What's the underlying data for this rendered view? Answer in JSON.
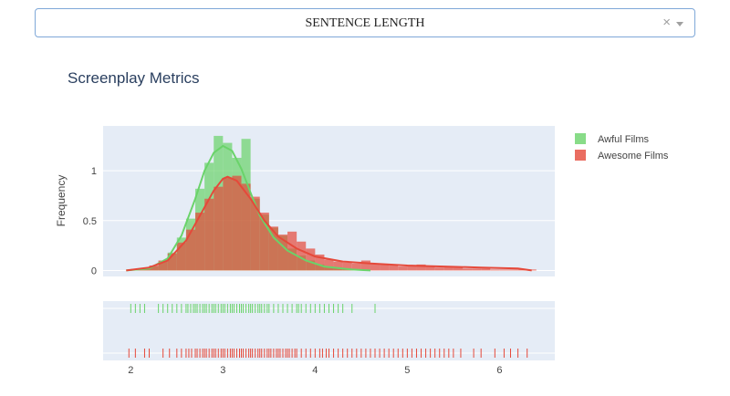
{
  "dropdown": {
    "value": "SENTENCE LENGTH",
    "clear_glyph": "×",
    "caret_icon": "caret-down-icon"
  },
  "chart_data": {
    "type": "histogram-distplot",
    "title": "Screenplay Metrics",
    "ylabel": "Frequency",
    "xlabel": "",
    "xlim": [
      1.7,
      6.6
    ],
    "ylim": [
      -0.06,
      1.45
    ],
    "x_ticks": [
      "2",
      "3",
      "4",
      "5",
      "6"
    ],
    "y_ticks": [
      "0",
      "0.5",
      "1"
    ],
    "legend_position": "top-right",
    "colors": {
      "awful": "#6ad36a",
      "awesome": "#e5493a",
      "plot_bg": "#e5ecf6"
    },
    "bin_width": 0.1,
    "series": [
      {
        "name": "Awful Films",
        "histogram": [
          {
            "x": 2.0,
            "y": 0.01
          },
          {
            "x": 2.1,
            "y": 0.02
          },
          {
            "x": 2.2,
            "y": 0.04
          },
          {
            "x": 2.3,
            "y": 0.09
          },
          {
            "x": 2.4,
            "y": 0.18
          },
          {
            "x": 2.5,
            "y": 0.33
          },
          {
            "x": 2.6,
            "y": 0.52
          },
          {
            "x": 2.7,
            "y": 0.82
          },
          {
            "x": 2.8,
            "y": 1.08
          },
          {
            "x": 2.9,
            "y": 1.35
          },
          {
            "x": 3.0,
            "y": 1.28
          },
          {
            "x": 3.1,
            "y": 1.13
          },
          {
            "x": 3.2,
            "y": 1.32
          },
          {
            "x": 3.3,
            "y": 0.72
          },
          {
            "x": 3.4,
            "y": 0.56
          },
          {
            "x": 3.5,
            "y": 0.43
          },
          {
            "x": 3.6,
            "y": 0.35
          },
          {
            "x": 3.7,
            "y": 0.22
          },
          {
            "x": 3.8,
            "y": 0.15
          },
          {
            "x": 3.9,
            "y": 0.1
          },
          {
            "x": 4.0,
            "y": 0.06
          },
          {
            "x": 4.1,
            "y": 0.04
          },
          {
            "x": 4.2,
            "y": 0.03
          },
          {
            "x": 4.3,
            "y": 0.02
          },
          {
            "x": 4.4,
            "y": 0.01
          },
          {
            "x": 4.5,
            "y": 0.01
          }
        ],
        "curve": [
          {
            "x": 1.95,
            "y": 0.0
          },
          {
            "x": 2.2,
            "y": 0.02
          },
          {
            "x": 2.4,
            "y": 0.12
          },
          {
            "x": 2.55,
            "y": 0.35
          },
          {
            "x": 2.7,
            "y": 0.72
          },
          {
            "x": 2.8,
            "y": 1.0
          },
          {
            "x": 2.9,
            "y": 1.18
          },
          {
            "x": 3.0,
            "y": 1.25
          },
          {
            "x": 3.1,
            "y": 1.2
          },
          {
            "x": 3.2,
            "y": 1.02
          },
          {
            "x": 3.3,
            "y": 0.78
          },
          {
            "x": 3.4,
            "y": 0.55
          },
          {
            "x": 3.55,
            "y": 0.33
          },
          {
            "x": 3.7,
            "y": 0.2
          },
          {
            "x": 3.9,
            "y": 0.1
          },
          {
            "x": 4.1,
            "y": 0.04
          },
          {
            "x": 4.4,
            "y": 0.01
          },
          {
            "x": 4.6,
            "y": 0.0
          }
        ],
        "rug": [
          2.0,
          2.05,
          2.1,
          2.15,
          2.3,
          2.35,
          2.4,
          2.45,
          2.5,
          2.55,
          2.6,
          2.62,
          2.65,
          2.68,
          2.7,
          2.72,
          2.75,
          2.78,
          2.8,
          2.82,
          2.85,
          2.88,
          2.9,
          2.92,
          2.95,
          2.98,
          3.0,
          3.02,
          3.05,
          3.08,
          3.1,
          3.12,
          3.15,
          3.18,
          3.2,
          3.22,
          3.25,
          3.28,
          3.3,
          3.32,
          3.35,
          3.38,
          3.4,
          3.42,
          3.45,
          3.48,
          3.5,
          3.55,
          3.6,
          3.65,
          3.7,
          3.75,
          3.8,
          3.82,
          3.85,
          3.9,
          3.95,
          4.0,
          4.05,
          4.1,
          4.15,
          4.2,
          4.25,
          4.3,
          4.4,
          4.65
        ]
      },
      {
        "name": "Awesome Films",
        "histogram": [
          {
            "x": 2.0,
            "y": 0.01
          },
          {
            "x": 2.1,
            "y": 0.02
          },
          {
            "x": 2.2,
            "y": 0.05
          },
          {
            "x": 2.3,
            "y": 0.1
          },
          {
            "x": 2.4,
            "y": 0.17
          },
          {
            "x": 2.5,
            "y": 0.28
          },
          {
            "x": 2.6,
            "y": 0.41
          },
          {
            "x": 2.7,
            "y": 0.58
          },
          {
            "x": 2.8,
            "y": 0.72
          },
          {
            "x": 2.9,
            "y": 0.84
          },
          {
            "x": 3.0,
            "y": 0.93
          },
          {
            "x": 3.1,
            "y": 0.95
          },
          {
            "x": 3.2,
            "y": 0.87
          },
          {
            "x": 3.3,
            "y": 0.74
          },
          {
            "x": 3.4,
            "y": 0.58
          },
          {
            "x": 3.5,
            "y": 0.44
          },
          {
            "x": 3.6,
            "y": 0.36
          },
          {
            "x": 3.7,
            "y": 0.39
          },
          {
            "x": 3.8,
            "y": 0.29
          },
          {
            "x": 3.9,
            "y": 0.22
          },
          {
            "x": 4.0,
            "y": 0.16
          },
          {
            "x": 4.1,
            "y": 0.11
          },
          {
            "x": 4.2,
            "y": 0.09
          },
          {
            "x": 4.3,
            "y": 0.08
          },
          {
            "x": 4.4,
            "y": 0.07
          },
          {
            "x": 4.5,
            "y": 0.1
          },
          {
            "x": 4.6,
            "y": 0.07
          },
          {
            "x": 4.7,
            "y": 0.06
          },
          {
            "x": 4.8,
            "y": 0.05
          },
          {
            "x": 4.9,
            "y": 0.04
          },
          {
            "x": 5.0,
            "y": 0.05
          },
          {
            "x": 5.1,
            "y": 0.06
          },
          {
            "x": 5.2,
            "y": 0.04
          },
          {
            "x": 5.3,
            "y": 0.03
          },
          {
            "x": 5.4,
            "y": 0.04
          },
          {
            "x": 5.5,
            "y": 0.03
          },
          {
            "x": 5.6,
            "y": 0.02
          },
          {
            "x": 5.7,
            "y": 0.02
          },
          {
            "x": 5.8,
            "y": 0.02
          },
          {
            "x": 5.9,
            "y": 0.01
          },
          {
            "x": 6.0,
            "y": 0.01
          },
          {
            "x": 6.1,
            "y": 0.01
          },
          {
            "x": 6.2,
            "y": 0.01
          },
          {
            "x": 6.3,
            "y": 0.01
          }
        ],
        "curve": [
          {
            "x": 1.95,
            "y": 0.0
          },
          {
            "x": 2.2,
            "y": 0.03
          },
          {
            "x": 2.4,
            "y": 0.1
          },
          {
            "x": 2.6,
            "y": 0.3
          },
          {
            "x": 2.75,
            "y": 0.55
          },
          {
            "x": 2.9,
            "y": 0.8
          },
          {
            "x": 3.0,
            "y": 0.92
          },
          {
            "x": 3.05,
            "y": 0.94
          },
          {
            "x": 3.15,
            "y": 0.9
          },
          {
            "x": 3.3,
            "y": 0.72
          },
          {
            "x": 3.45,
            "y": 0.5
          },
          {
            "x": 3.6,
            "y": 0.34
          },
          {
            "x": 3.8,
            "y": 0.22
          },
          {
            "x": 4.0,
            "y": 0.14
          },
          {
            "x": 4.3,
            "y": 0.09
          },
          {
            "x": 4.6,
            "y": 0.07
          },
          {
            "x": 5.0,
            "y": 0.05
          },
          {
            "x": 5.4,
            "y": 0.04
          },
          {
            "x": 5.8,
            "y": 0.03
          },
          {
            "x": 6.2,
            "y": 0.02
          },
          {
            "x": 6.35,
            "y": 0.0
          }
        ],
        "rug": [
          1.98,
          2.05,
          2.15,
          2.2,
          2.35,
          2.42,
          2.5,
          2.55,
          2.6,
          2.63,
          2.66,
          2.7,
          2.72,
          2.75,
          2.78,
          2.8,
          2.82,
          2.85,
          2.88,
          2.9,
          2.92,
          2.95,
          2.98,
          3.0,
          3.02,
          3.05,
          3.08,
          3.1,
          3.12,
          3.15,
          3.18,
          3.2,
          3.22,
          3.25,
          3.28,
          3.3,
          3.32,
          3.35,
          3.38,
          3.4,
          3.42,
          3.45,
          3.48,
          3.5,
          3.52,
          3.55,
          3.58,
          3.6,
          3.62,
          3.65,
          3.68,
          3.7,
          3.72,
          3.75,
          3.78,
          3.8,
          3.85,
          3.9,
          3.95,
          4.0,
          4.05,
          4.08,
          4.12,
          4.15,
          4.2,
          4.25,
          4.3,
          4.35,
          4.4,
          4.45,
          4.5,
          4.55,
          4.6,
          4.65,
          4.7,
          4.75,
          4.8,
          4.85,
          4.9,
          4.95,
          5.0,
          5.05,
          5.1,
          5.15,
          5.2,
          5.25,
          5.3,
          5.35,
          5.4,
          5.45,
          5.5,
          5.58,
          5.72,
          5.8,
          5.95,
          6.05,
          6.12,
          6.2,
          6.3
        ]
      }
    ]
  }
}
